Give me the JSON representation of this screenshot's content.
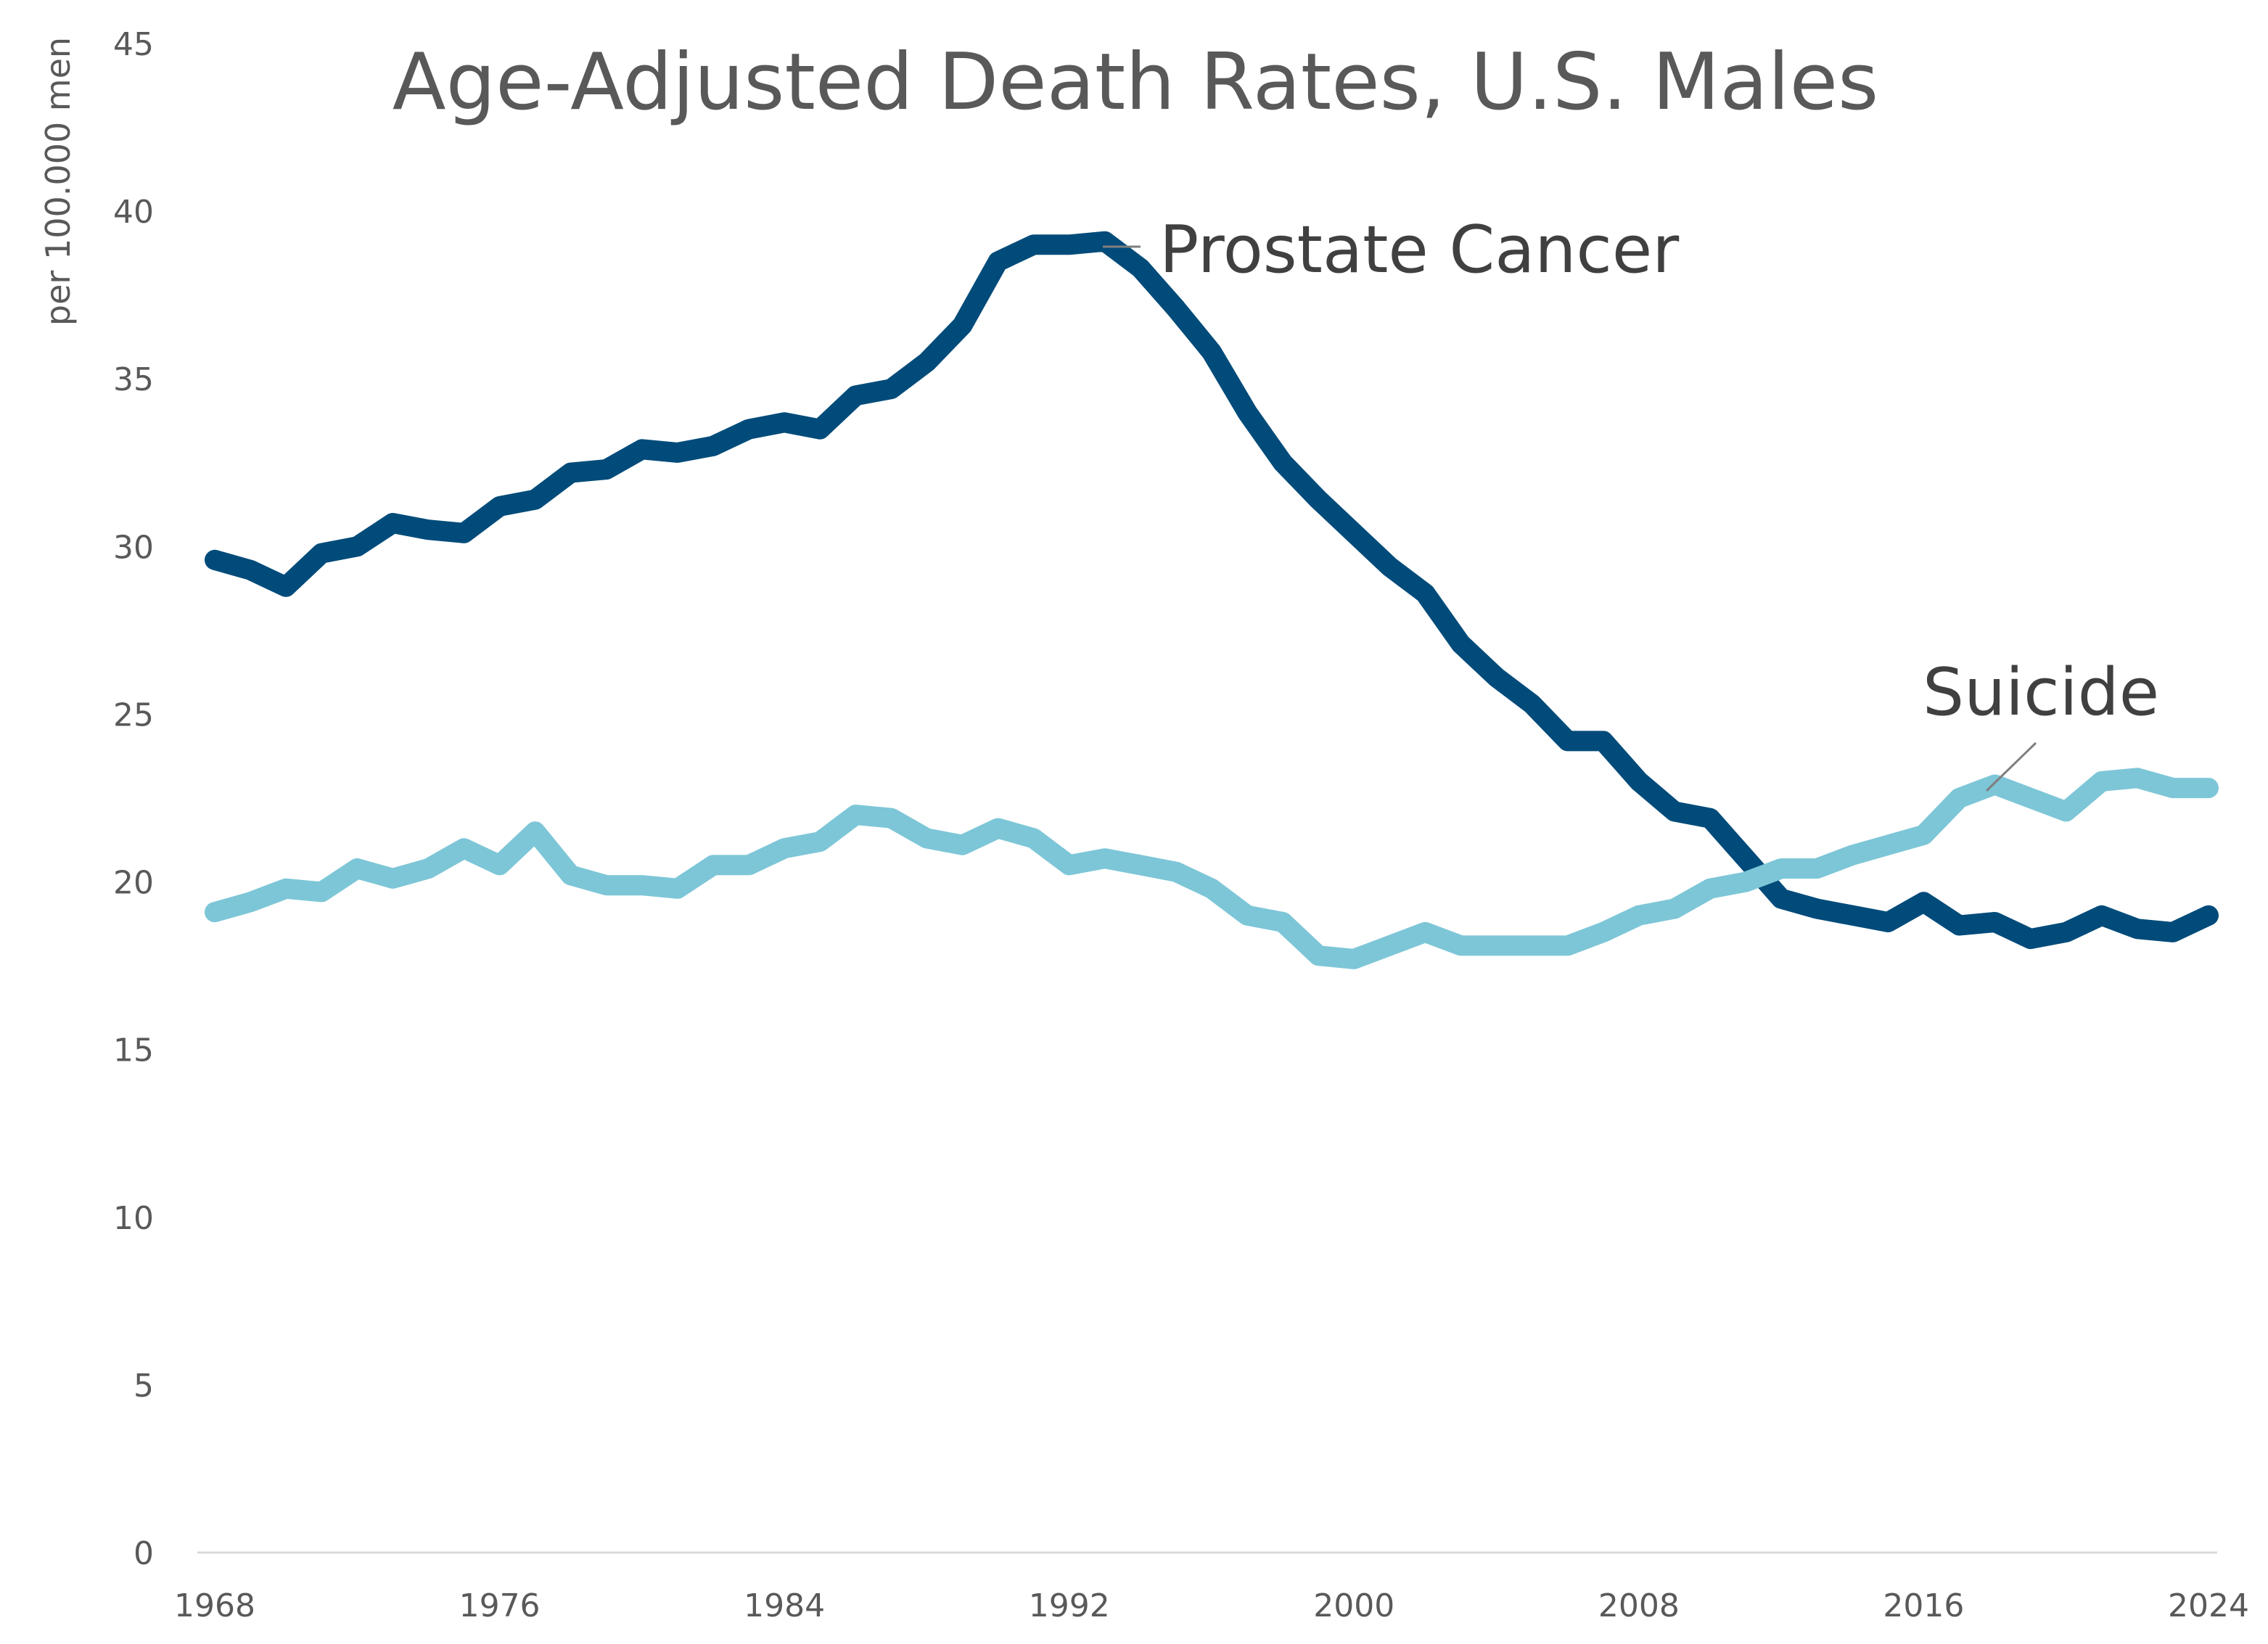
{
  "chart_data": {
    "type": "line",
    "title": "Age-Adjusted Death Rates, U.S. Males",
    "xlabel": "",
    "ylabel": "per 100.000 men",
    "xlim": [
      1968,
      2024
    ],
    "ylim": [
      0,
      45
    ],
    "x_ticks": [
      1968,
      1976,
      1984,
      1992,
      2000,
      2008,
      2016,
      2024
    ],
    "y_ticks": [
      0,
      5,
      10,
      15,
      20,
      25,
      30,
      35,
      40,
      45
    ],
    "grid": false,
    "legend": "none",
    "x": [
      1968,
      1969,
      1970,
      1971,
      1972,
      1973,
      1974,
      1975,
      1976,
      1977,
      1978,
      1979,
      1980,
      1981,
      1982,
      1983,
      1984,
      1985,
      1986,
      1987,
      1988,
      1989,
      1990,
      1991,
      1992,
      1993,
      1994,
      1995,
      1996,
      1997,
      1998,
      1999,
      2000,
      2001,
      2002,
      2003,
      2004,
      2005,
      2006,
      2007,
      2008,
      2009,
      2010,
      2011,
      2012,
      2013,
      2014,
      2015,
      2016,
      2017,
      2018,
      2019,
      2020,
      2021,
      2022,
      2023,
      2024
    ],
    "series": [
      {
        "name": "Prostate Cancer",
        "color": "#004b7a",
        "values": [
          29.6,
          29.3,
          28.8,
          29.8,
          30.0,
          30.7,
          30.5,
          30.4,
          31.2,
          31.4,
          32.2,
          32.3,
          32.9,
          32.8,
          33.0,
          33.5,
          33.7,
          33.5,
          34.5,
          34.7,
          35.5,
          36.6,
          38.5,
          39.0,
          39.0,
          39.1,
          38.3,
          37.1,
          35.8,
          34.0,
          32.5,
          31.4,
          30.4,
          29.4,
          28.6,
          27.1,
          26.1,
          25.3,
          24.2,
          24.2,
          23.0,
          22.1,
          21.9,
          20.7,
          19.5,
          19.2,
          19.0,
          18.8,
          19.4,
          18.7,
          18.8,
          18.3,
          18.5,
          19.0,
          18.6,
          18.5,
          19.0
        ]
      },
      {
        "name": "Suicide",
        "color": "#7dc6d7",
        "values": [
          19.1,
          19.4,
          19.8,
          19.7,
          20.4,
          20.1,
          20.4,
          21.0,
          20.5,
          21.5,
          20.2,
          19.9,
          19.9,
          19.8,
          20.5,
          20.5,
          21.0,
          21.2,
          22.0,
          21.9,
          21.3,
          21.1,
          21.6,
          21.3,
          20.5,
          20.7,
          20.5,
          20.3,
          19.8,
          19.0,
          18.8,
          17.8,
          17.7,
          18.1,
          18.5,
          18.1,
          18.1,
          18.1,
          18.1,
          18.5,
          19.0,
          19.2,
          19.8,
          20.0,
          20.4,
          20.4,
          20.8,
          21.1,
          21.4,
          22.5,
          22.9,
          22.5,
          22.1,
          23.0,
          23.1,
          22.8,
          22.8
        ]
      }
    ]
  }
}
